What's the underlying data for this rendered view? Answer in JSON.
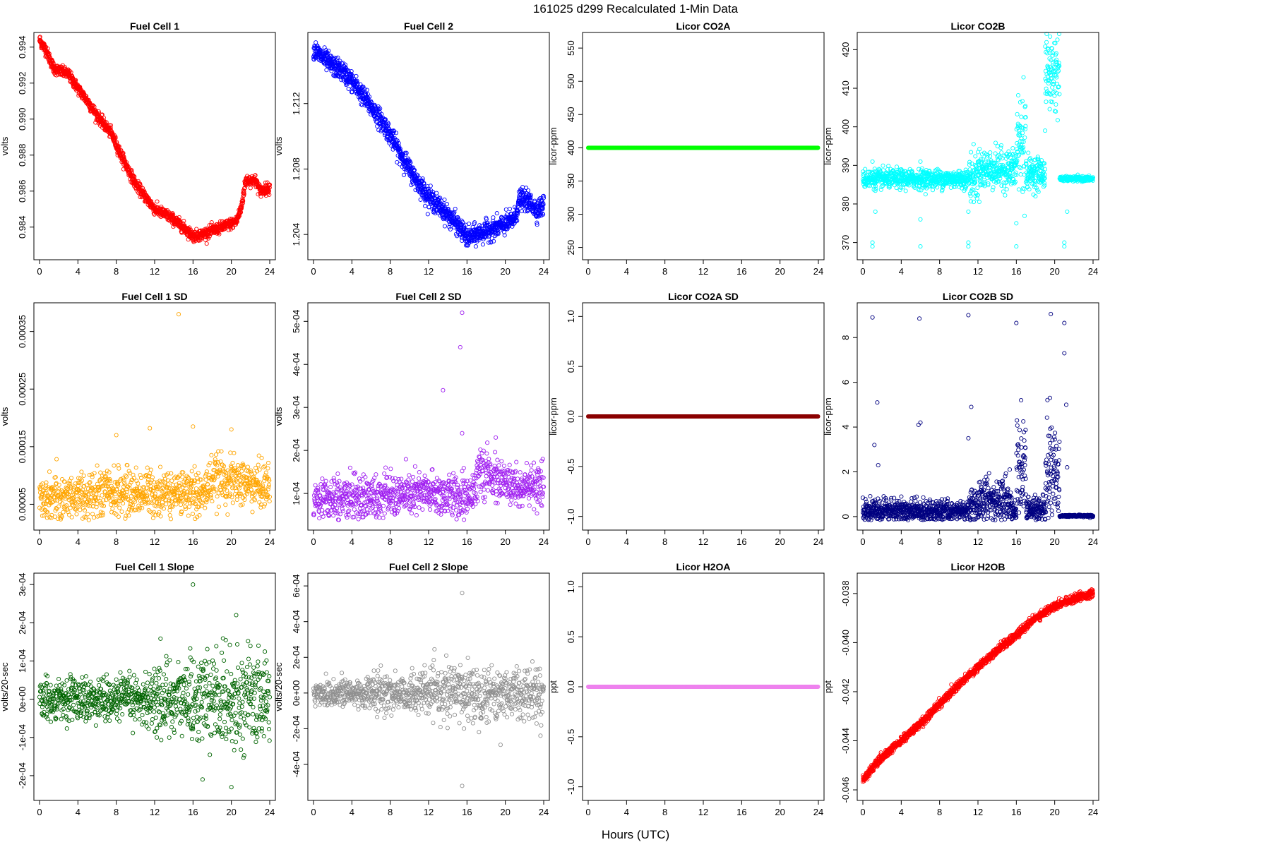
{
  "figure": {
    "title": "161025   d299   Recalculated 1-Min Data",
    "xlabel": "Hours (UTC)"
  },
  "chart_data": [
    {
      "type": "scatter",
      "title": "Fuel Cell 1",
      "ylabel": "volts",
      "color": "#ff0000",
      "xlim": [
        0,
        24
      ],
      "ylim": [
        0.9825,
        0.9945
      ],
      "xticks": [
        "0",
        "4",
        "8",
        "12",
        "16",
        "20",
        "24"
      ],
      "yticks": [
        0.984,
        0.986,
        0.988,
        0.99,
        0.992,
        0.994
      ],
      "ytick_labels": [
        "0.984",
        "0.986",
        "0.988",
        "0.990",
        "0.992",
        "0.994"
      ],
      "shape": "trend",
      "trend": [
        [
          0,
          0.9944
        ],
        [
          0.7,
          0.9938
        ],
        [
          1.5,
          0.9928
        ],
        [
          3,
          0.9925
        ],
        [
          4,
          0.9917
        ],
        [
          5,
          0.991
        ],
        [
          6,
          0.9902
        ],
        [
          7.5,
          0.9892
        ],
        [
          8.5,
          0.988
        ],
        [
          10,
          0.9864
        ],
        [
          11,
          0.9857
        ],
        [
          12,
          0.985
        ],
        [
          13.5,
          0.9846
        ],
        [
          15,
          0.984
        ],
        [
          16,
          0.9835
        ],
        [
          17,
          0.9836
        ],
        [
          18,
          0.9838
        ],
        [
          19,
          0.984
        ],
        [
          20.5,
          0.9843
        ],
        [
          21,
          0.985
        ],
        [
          21.5,
          0.9866
        ],
        [
          22.5,
          0.9866
        ],
        [
          23,
          0.986
        ],
        [
          24,
          0.9862
        ]
      ],
      "noise": 0.00015,
      "count": 1440
    },
    {
      "type": "scatter",
      "title": "Fuel Cell 2",
      "ylabel": "volts",
      "color": "#0000ff",
      "xlim": [
        0,
        24
      ],
      "ylim": [
        1.2028,
        1.216
      ],
      "xticks": [
        "0",
        "4",
        "8",
        "12",
        "16",
        "20",
        "24"
      ],
      "yticks": [
        1.204,
        1.208,
        1.212
      ],
      "ytick_labels": [
        "1.204",
        "1.208",
        "1.212"
      ],
      "shape": "trend",
      "trend": [
        [
          0,
          1.2153
        ],
        [
          1,
          1.2148
        ],
        [
          2,
          1.2143
        ],
        [
          3,
          1.214
        ],
        [
          4.5,
          1.213
        ],
        [
          6,
          1.2118
        ],
        [
          7.5,
          1.2106
        ],
        [
          9,
          1.209
        ],
        [
          10.5,
          1.2075
        ],
        [
          12,
          1.2063
        ],
        [
          13.5,
          1.2055
        ],
        [
          15,
          1.2046
        ],
        [
          16,
          1.2038
        ],
        [
          17,
          1.204
        ],
        [
          18.5,
          1.2043
        ],
        [
          20,
          1.2046
        ],
        [
          21,
          1.205
        ],
        [
          21.5,
          1.2062
        ],
        [
          22.5,
          1.206
        ],
        [
          23.3,
          1.2055
        ],
        [
          24,
          1.2058
        ]
      ],
      "noise": 0.0003,
      "count": 1440
    },
    {
      "type": "scatter",
      "title": "Licor CO2A",
      "ylabel": "licor-ppm",
      "color": "#00ff00",
      "xlim": [
        0,
        24
      ],
      "ylim": [
        240,
        565
      ],
      "xticks": [
        "0",
        "4",
        "8",
        "12",
        "16",
        "20",
        "24"
      ],
      "yticks": [
        250,
        300,
        350,
        400,
        450,
        500,
        550
      ],
      "ytick_labels": [
        "250",
        "300",
        "350",
        "400",
        "450",
        "500",
        "550"
      ],
      "shape": "constant",
      "value": 400,
      "count": 1440
    },
    {
      "type": "scatter",
      "title": "Licor CO2B",
      "ylabel": "licor-ppm",
      "color": "#00ffff",
      "xlim": [
        0,
        24
      ],
      "ylim": [
        367,
        423
      ],
      "xticks": [
        "0",
        "4",
        "8",
        "12",
        "16",
        "20",
        "24"
      ],
      "yticks": [
        370,
        380,
        390,
        400,
        410,
        420
      ],
      "ytick_labels": [
        "370",
        "380",
        "390",
        "400",
        "410",
        "420"
      ],
      "shape": "segments",
      "segments": [
        [
          0,
          11,
          386.5,
          1.2
        ],
        [
          11,
          12,
          387,
          3
        ],
        [
          12,
          16,
          389,
          2.5
        ],
        [
          16,
          17,
          396,
          8
        ],
        [
          17,
          19,
          388,
          2
        ],
        [
          19,
          20.5,
          414,
          5
        ],
        [
          20.5,
          24,
          386.5,
          0.3
        ]
      ],
      "outliers": [
        [
          1,
          369
        ],
        [
          1,
          370
        ],
        [
          1,
          391
        ],
        [
          1.3,
          378
        ],
        [
          6,
          369
        ],
        [
          6,
          376
        ],
        [
          6,
          391
        ],
        [
          11,
          369
        ],
        [
          11,
          378
        ],
        [
          11,
          370
        ],
        [
          16,
          369
        ],
        [
          16,
          375
        ],
        [
          16,
          391
        ],
        [
          19,
          399
        ],
        [
          21,
          369
        ],
        [
          21,
          370
        ],
        [
          21.3,
          378
        ]
      ],
      "count": 1440
    },
    {
      "type": "scatter",
      "title": "Fuel Cell 1 SD",
      "ylabel": "volts",
      "color": "#ffa500",
      "xlim": [
        0,
        24
      ],
      "ylim": [
        1.5e-05,
        0.00039
      ],
      "xticks": [
        "0",
        "4",
        "8",
        "12",
        "16",
        "20",
        "24"
      ],
      "yticks": [
        5e-05,
        0.00015,
        0.00025,
        0.00035
      ],
      "ytick_labels": [
        "0.00005",
        "0.00015",
        "0.00025",
        "0.00035"
      ],
      "shape": "noise",
      "trend": [
        [
          0,
          6e-05
        ],
        [
          8,
          7e-05
        ],
        [
          16,
          7e-05
        ],
        [
          17,
          6.5e-05
        ],
        [
          18,
          9.5e-05
        ],
        [
          24,
          8e-05
        ]
      ],
      "noise": 2e-05,
      "outliers": [
        [
          14.5,
          0.00038
        ],
        [
          16,
          0.000185
        ],
        [
          11.5,
          0.000182
        ],
        [
          8,
          0.00017
        ],
        [
          20,
          0.00018
        ]
      ],
      "count": 1000
    },
    {
      "type": "scatter",
      "title": "Fuel Cell 2 SD",
      "ylabel": "volts",
      "color": "#a020f0",
      "xlim": [
        0,
        24
      ],
      "ylim": [
        2.8e-05,
        0.00053
      ],
      "xticks": [
        "0",
        "4",
        "8",
        "12",
        "16",
        "20",
        "24"
      ],
      "yticks": [
        0.0001,
        0.0002,
        0.0003,
        0.0004,
        0.0005
      ],
      "ytick_labels": [
        "1e-04",
        "2e-04",
        "3e-04",
        "4e-04",
        "5e-04"
      ],
      "shape": "noise",
      "trend": [
        [
          0,
          8.5e-05
        ],
        [
          12,
          0.0001
        ],
        [
          16,
          9e-05
        ],
        [
          17.5,
          0.00015
        ],
        [
          20,
          0.00012
        ],
        [
          24,
          0.00011
        ]
      ],
      "noise": 2.5e-05,
      "outliers": [
        [
          15.5,
          0.00052
        ],
        [
          15.3,
          0.00044
        ],
        [
          13.5,
          0.00034
        ],
        [
          15.5,
          0.00024
        ],
        [
          19,
          0.00023
        ]
      ],
      "count": 1000
    },
    {
      "type": "scatter",
      "title": "Licor CO2A SD",
      "ylabel": "licor-ppm",
      "color": "#8b0000",
      "xlim": [
        0,
        24
      ],
      "ylim": [
        -1.08,
        1.08
      ],
      "xticks": [
        "0",
        "4",
        "8",
        "12",
        "16",
        "20",
        "24"
      ],
      "yticks": [
        -1.0,
        -0.5,
        0.0,
        0.5,
        1.0
      ],
      "ytick_labels": [
        "-1.0",
        "-0.5",
        "0.0",
        "0.5",
        "1.0"
      ],
      "shape": "constant",
      "value": 0,
      "count": 1440
    },
    {
      "type": "scatter",
      "title": "Licor CO2B SD",
      "ylabel": "licor-ppm",
      "color": "#000080",
      "xlim": [
        0,
        24
      ],
      "ylim": [
        -0.35,
        9.3
      ],
      "xticks": [
        "0",
        "4",
        "8",
        "12",
        "16",
        "20",
        "24"
      ],
      "yticks": [
        0,
        2,
        4,
        6,
        8
      ],
      "ytick_labels": [
        "0",
        "2",
        "4",
        "6",
        "8"
      ],
      "shape": "segments",
      "segments": [
        [
          0,
          11,
          0.2,
          0.25
        ],
        [
          11,
          12,
          0.3,
          0.5
        ],
        [
          12,
          15.5,
          0.7,
          0.5
        ],
        [
          15.5,
          16,
          0.2,
          0.2
        ],
        [
          16,
          17,
          1.8,
          1.3
        ],
        [
          17,
          19,
          0.3,
          0.3
        ],
        [
          19,
          20.5,
          1.7,
          1.2
        ],
        [
          20.5,
          24,
          0.03,
          0.02
        ]
      ],
      "outliers": [
        [
          0.8,
          0.4
        ],
        [
          1.2,
          3.2
        ],
        [
          1.5,
          5.1
        ],
        [
          1.6,
          2.3
        ],
        [
          1,
          8.9
        ],
        [
          5.8,
          4.1
        ],
        [
          6,
          4.2
        ],
        [
          5.9,
          8.85
        ],
        [
          11,
          3.5
        ],
        [
          11.3,
          4.9
        ],
        [
          11,
          9
        ],
        [
          16,
          8.65
        ],
        [
          16.5,
          5.2
        ],
        [
          19.6,
          9.05
        ],
        [
          19.5,
          5.3
        ],
        [
          21,
          7.3
        ],
        [
          21.2,
          5.0
        ],
        [
          21,
          8.65
        ],
        [
          21.3,
          2.2
        ]
      ],
      "count": 1440
    },
    {
      "type": "scatter",
      "title": "Fuel Cell 1 Slope",
      "ylabel": "volts/20-sec",
      "color": "#006400",
      "xlim": [
        0,
        24
      ],
      "ylim": [
        -0.00025,
        0.000315
      ],
      "xticks": [
        "0",
        "4",
        "8",
        "12",
        "16",
        "20",
        "24"
      ],
      "yticks": [
        -0.0002,
        -0.0001,
        0,
        0.0001,
        0.0002,
        0.0003
      ],
      "ytick_labels": [
        "-2e-04",
        "-1e-04",
        "0e+00",
        "1e-04",
        "2e-04",
        "3e-04"
      ],
      "shape": "noise",
      "trend": [
        [
          0,
          0
        ],
        [
          24,
          0
        ]
      ],
      "noise": 3.2e-05,
      "noise2": [
        [
          0,
          2.5e-05
        ],
        [
          11,
          3e-05
        ],
        [
          12,
          5e-05
        ],
        [
          24,
          6e-05
        ]
      ],
      "outliers": [
        [
          16,
          0.0003
        ],
        [
          20,
          -0.00023
        ],
        [
          17,
          -0.00021
        ],
        [
          20.5,
          0.00022
        ]
      ],
      "count": 1000
    },
    {
      "type": "scatter",
      "title": "Fuel Cell 2 Slope",
      "ylabel": "volts/20-sec",
      "color": "#909090",
      "xlim": [
        0,
        24
      ],
      "ylim": [
        -0.00057,
        0.00064
      ],
      "xticks": [
        "0",
        "4",
        "8",
        "12",
        "16",
        "20",
        "24"
      ],
      "yticks": [
        -0.0004,
        -0.0002,
        0,
        0.0002,
        0.0004,
        0.0006
      ],
      "ytick_labels": [
        "-4e-04",
        "-2e-04",
        "0e+00",
        "2e-04",
        "4e-04",
        "6e-04"
      ],
      "shape": "noise",
      "trend": [
        [
          0,
          0
        ],
        [
          24,
          0
        ]
      ],
      "noise": 5e-05,
      "noise2": [
        [
          0,
          4e-05
        ],
        [
          12,
          6e-05
        ],
        [
          15,
          8e-05
        ],
        [
          24,
          7e-05
        ]
      ],
      "outliers": [
        [
          15.5,
          0.00056
        ],
        [
          15.5,
          -0.00052
        ],
        [
          19.5,
          -0.00029
        ]
      ],
      "count": 1000
    },
    {
      "type": "scatter",
      "title": "Licor H2OA",
      "ylabel": "ppt",
      "color": "#ee82ee",
      "xlim": [
        0,
        24
      ],
      "ylim": [
        -1.08,
        1.08
      ],
      "xticks": [
        "0",
        "4",
        "8",
        "12",
        "16",
        "20",
        "24"
      ],
      "yticks": [
        -1.0,
        -0.5,
        0.0,
        0.5,
        1.0
      ],
      "ytick_labels": [
        "-1.0",
        "-0.5",
        "0.0",
        "0.5",
        "1.0"
      ],
      "shape": "constant",
      "value": 0,
      "count": 1440
    },
    {
      "type": "scatter",
      "title": "Licor H2OB",
      "ylabel": "ppt",
      "color": "#ff0000",
      "xlim": [
        0,
        24
      ],
      "ylim": [
        -0.0462,
        -0.0374
      ],
      "xticks": [
        "0",
        "4",
        "8",
        "12",
        "16",
        "20",
        "24"
      ],
      "yticks": [
        -0.046,
        -0.044,
        -0.042,
        -0.04,
        -0.038
      ],
      "ytick_labels": [
        "-0.046",
        "-0.044",
        "-0.042",
        "-0.040",
        "-0.038"
      ],
      "shape": "trend",
      "trend": [
        [
          0,
          -0.0456
        ],
        [
          1,
          -0.0451
        ],
        [
          2,
          -0.0447
        ],
        [
          4,
          -0.044
        ],
        [
          6,
          -0.0433
        ],
        [
          8,
          -0.0425
        ],
        [
          10,
          -0.0417
        ],
        [
          12,
          -0.041
        ],
        [
          14,
          -0.0403
        ],
        [
          16,
          -0.0397
        ],
        [
          18,
          -0.039
        ],
        [
          20,
          -0.0385
        ],
        [
          22,
          -0.0382
        ],
        [
          24,
          -0.038
        ]
      ],
      "noise": 8e-05,
      "count": 1440
    }
  ]
}
